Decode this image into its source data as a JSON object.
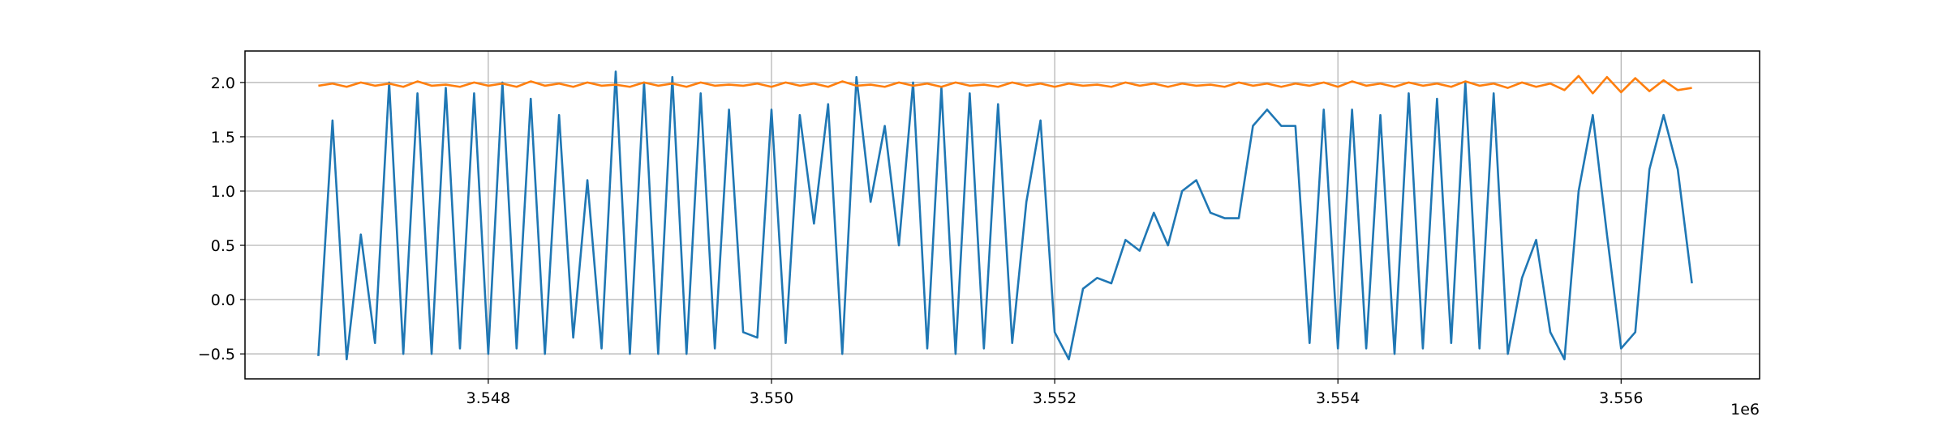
{
  "chart_data": {
    "type": "line",
    "x_offset_label": "1e6",
    "x": [
      3546800,
      3546900,
      3547000,
      3547100,
      3547200,
      3547300,
      3547400,
      3547500,
      3547600,
      3547700,
      3547800,
      3547900,
      3548000,
      3548100,
      3548200,
      3548300,
      3548400,
      3548500,
      3548600,
      3548700,
      3548800,
      3548900,
      3549000,
      3549100,
      3549200,
      3549300,
      3549400,
      3549500,
      3549600,
      3549700,
      3549800,
      3549900,
      3550000,
      3550100,
      3550200,
      3550300,
      3550400,
      3550500,
      3550600,
      3550700,
      3550800,
      3550900,
      3551000,
      3551100,
      3551200,
      3551300,
      3551400,
      3551500,
      3551600,
      3551700,
      3551800,
      3551900,
      3552000,
      3552100,
      3552200,
      3552300,
      3552400,
      3552500,
      3552600,
      3552700,
      3552800,
      3552900,
      3553000,
      3553100,
      3553200,
      3553300,
      3553400,
      3553500,
      3553600,
      3553700,
      3553800,
      3553900,
      3554000,
      3554100,
      3554200,
      3554300,
      3554400,
      3554500,
      3554600,
      3554700,
      3554800,
      3554900,
      3555000,
      3555100,
      3555200,
      3555300,
      3555400,
      3555500,
      3555600,
      3555700,
      3555800,
      3555900,
      3556000,
      3556100,
      3556200,
      3556300,
      3556400,
      3556500
    ],
    "series": [
      {
        "color": "#1f77b4",
        "values": [
          -0.52,
          1.65,
          -0.55,
          0.6,
          -0.4,
          2.0,
          -0.5,
          1.9,
          -0.5,
          1.95,
          -0.45,
          1.9,
          -0.5,
          2.0,
          -0.45,
          1.85,
          -0.5,
          1.7,
          -0.35,
          1.1,
          -0.45,
          2.1,
          -0.5,
          2.0,
          -0.5,
          2.05,
          -0.5,
          1.9,
          -0.45,
          1.75,
          -0.3,
          -0.35,
          1.75,
          -0.4,
          1.7,
          0.7,
          1.8,
          -0.5,
          2.05,
          0.9,
          1.6,
          0.5,
          2.0,
          -0.45,
          1.95,
          -0.5,
          1.9,
          -0.45,
          1.8,
          -0.4,
          0.9,
          1.65,
          -0.3,
          -0.55,
          0.1,
          0.2,
          0.15,
          0.55,
          0.45,
          0.8,
          0.5,
          1.0,
          1.1,
          0.8,
          0.75,
          0.75,
          1.6,
          1.75,
          1.6,
          1.6,
          -0.4,
          1.75,
          -0.45,
          1.75,
          -0.45,
          1.7,
          -0.5,
          1.9,
          -0.45,
          1.85,
          -0.4,
          2.0,
          -0.45,
          1.9,
          -0.5,
          0.2,
          0.55,
          -0.3,
          -0.55,
          1.0,
          1.7,
          0.6,
          -0.45,
          -0.3,
          1.2,
          1.7,
          1.2,
          0.15
        ]
      },
      {
        "color": "#ff7f0e",
        "values": [
          1.97,
          1.99,
          1.96,
          2.0,
          1.97,
          1.99,
          1.96,
          2.01,
          1.97,
          1.98,
          1.96,
          2.0,
          1.97,
          1.99,
          1.96,
          2.01,
          1.97,
          1.99,
          1.96,
          2.0,
          1.97,
          1.98,
          1.96,
          2.0,
          1.97,
          1.99,
          1.96,
          2.0,
          1.97,
          1.98,
          1.97,
          1.99,
          1.96,
          2.0,
          1.97,
          1.99,
          1.96,
          2.01,
          1.97,
          1.98,
          1.96,
          2.0,
          1.97,
          1.99,
          1.96,
          2.0,
          1.97,
          1.98,
          1.96,
          2.0,
          1.97,
          1.99,
          1.96,
          1.99,
          1.97,
          1.98,
          1.96,
          2.0,
          1.97,
          1.99,
          1.96,
          1.99,
          1.97,
          1.98,
          1.96,
          2.0,
          1.97,
          1.99,
          1.96,
          1.99,
          1.97,
          2.0,
          1.96,
          2.01,
          1.97,
          1.99,
          1.96,
          2.0,
          1.97,
          1.99,
          1.96,
          2.01,
          1.97,
          1.99,
          1.95,
          2.0,
          1.96,
          1.99,
          1.93,
          2.06,
          1.9,
          2.05,
          1.91,
          2.04,
          1.92,
          2.02,
          1.93,
          1.95
        ]
      }
    ],
    "xlim": [
      3546282,
      3556978
    ],
    "ylim": [
      -0.73,
      2.29
    ],
    "xticks": [
      {
        "value": 3548000,
        "label": "3.548"
      },
      {
        "value": 3550000,
        "label": "3.550"
      },
      {
        "value": 3552000,
        "label": "3.552"
      },
      {
        "value": 3554000,
        "label": "3.554"
      },
      {
        "value": 3556000,
        "label": "3.556"
      }
    ],
    "yticks": [
      {
        "value": -0.5,
        "label": "−0.5"
      },
      {
        "value": 0,
        "label": "0.0"
      },
      {
        "value": 0.5,
        "label": "0.5"
      },
      {
        "value": 1,
        "label": "1.0"
      },
      {
        "value": 1.5,
        "label": "1.5"
      },
      {
        "value": 2,
        "label": "2.0"
      }
    ],
    "grid": true
  }
}
